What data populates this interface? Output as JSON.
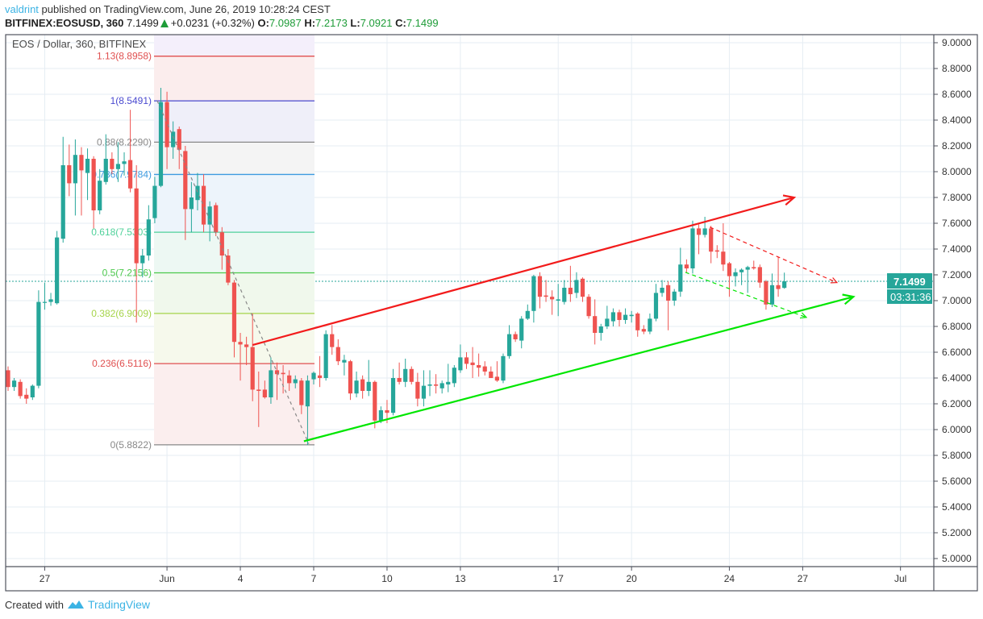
{
  "header": {
    "user": "valdrint",
    "published": "published on TradingView.com, June 26, 2019 10:28:24 CEST",
    "symbol": "BITFINEX:EOSUSD, 360",
    "last": "7.1499",
    "change": "+0.0231 (+0.32%)",
    "o_label": "O:",
    "o": "7.0987",
    "h_label": "H:",
    "h": "7.2173",
    "l_label": "L:",
    "l": "7.0921",
    "c_label": "C:",
    "c": "7.1499"
  },
  "legend": "EOS / Dollar, 360, BITFINEX",
  "price_label": "7.1499",
  "countdown": "03:31:36",
  "footer": {
    "created_with": "Created with",
    "brand": "TradingView"
  },
  "colors": {
    "up": "#26a69a",
    "down": "#ef5350",
    "trend_up": "#00e600",
    "trend_down": "#f21b1b"
  },
  "chart_data": {
    "type": "candlestick",
    "title": "EOS / Dollar, 360, BITFINEX",
    "ylim": [
      4.9,
      9.06
    ],
    "grid": true,
    "price_ticks": [
      "9.0000",
      "8.8000",
      "8.6000",
      "8.4000",
      "8.2000",
      "8.0000",
      "7.8000",
      "7.6000",
      "7.4000",
      "7.2000",
      "7.0000",
      "6.8000",
      "6.6000",
      "6.4000",
      "6.2000",
      "6.0000",
      "5.8000",
      "5.6000",
      "5.4000",
      "5.2000",
      "5.0000"
    ],
    "date_ticks": [
      "27",
      "Jun",
      "4",
      "7",
      "10",
      "13",
      "17",
      "20",
      "24",
      "27",
      "Jul"
    ],
    "fib_levels": [
      {
        "ratio": "1.13",
        "price": "8.8958",
        "color": "#e05050"
      },
      {
        "ratio": "1",
        "price": "8.5491",
        "color": "#4a4ad0"
      },
      {
        "ratio": "0.88",
        "price": "8.2290",
        "color": "#888888"
      },
      {
        "ratio": "0.786",
        "price": "7.9784",
        "color": "#3d9be0"
      },
      {
        "ratio": "0.618",
        "price": "7.5303",
        "color": "#4fd19a"
      },
      {
        "ratio": "0.5",
        "price": "7.2156",
        "color": "#4cc94c"
      },
      {
        "ratio": "0.382",
        "price": "6.9009",
        "color": "#a6d44a"
      },
      {
        "ratio": "0.236",
        "price": "6.5116",
        "color": "#e05050"
      },
      {
        "ratio": "0",
        "price": "5.8822",
        "color": "#888888"
      }
    ],
    "candles_ohlc": [
      [
        6.46,
        6.49,
        6.3,
        6.33
      ],
      [
        6.33,
        6.4,
        6.3,
        6.38
      ],
      [
        6.37,
        6.39,
        6.24,
        6.26
      ],
      [
        6.27,
        6.32,
        6.2,
        6.24
      ],
      [
        6.25,
        6.35,
        6.23,
        6.34
      ],
      [
        6.34,
        7.08,
        6.32,
        6.99
      ],
      [
        6.99,
        7.14,
        6.93,
        6.99
      ],
      [
        6.99,
        7.06,
        6.96,
        7.01
      ],
      [
        6.98,
        7.54,
        6.97,
        7.49
      ],
      [
        7.48,
        8.27,
        7.45,
        8.05
      ],
      [
        8.05,
        8.21,
        7.81,
        7.91
      ],
      [
        7.91,
        8.25,
        7.66,
        8.13
      ],
      [
        8.13,
        8.19,
        7.66,
        8.01
      ],
      [
        7.99,
        8.18,
        7.78,
        8.1
      ],
      [
        8.1,
        8.12,
        7.56,
        7.7
      ],
      [
        7.7,
        8.02,
        7.67,
        7.93
      ],
      [
        7.92,
        8.29,
        7.9,
        8.1
      ],
      [
        8.1,
        8.15,
        7.98,
        8.02
      ],
      [
        8.02,
        8.23,
        7.92,
        8.06
      ],
      [
        8.06,
        8.15,
        7.97,
        8.08
      ],
      [
        8.09,
        8.48,
        7.84,
        7.87
      ],
      [
        7.87,
        8.05,
        6.83,
        7.29
      ],
      [
        7.29,
        7.4,
        7.18,
        7.35
      ],
      [
        7.35,
        7.74,
        7.31,
        7.63
      ],
      [
        7.64,
        7.96,
        7.6,
        7.89
      ],
      [
        7.89,
        8.65,
        7.88,
        8.54
      ],
      [
        8.54,
        8.62,
        8.02,
        8.19
      ],
      [
        8.19,
        8.39,
        8.1,
        8.31
      ],
      [
        8.33,
        8.35,
        8.02,
        8.17
      ],
      [
        8.16,
        8.2,
        7.47,
        7.71
      ],
      [
        7.71,
        7.92,
        7.53,
        7.8
      ],
      [
        7.78,
        7.99,
        7.7,
        7.89
      ],
      [
        7.89,
        7.98,
        7.53,
        7.59
      ],
      [
        7.59,
        7.77,
        7.46,
        7.73
      ],
      [
        7.74,
        7.76,
        7.5,
        7.53
      ],
      [
        7.53,
        7.57,
        7.24,
        7.35
      ],
      [
        7.35,
        7.4,
        7.12,
        7.14
      ],
      [
        7.14,
        7.16,
        6.56,
        6.68
      ],
      [
        6.68,
        6.75,
        6.38,
        6.66
      ],
      [
        6.66,
        6.72,
        6.5,
        6.64
      ],
      [
        6.64,
        6.9,
        6.22,
        6.31
      ],
      [
        6.31,
        6.45,
        6.02,
        6.3
      ],
      [
        6.31,
        6.38,
        6.24,
        6.25
      ],
      [
        6.25,
        6.56,
        6.2,
        6.46
      ],
      [
        6.46,
        6.52,
        6.23,
        6.43
      ],
      [
        6.44,
        6.5,
        6.28,
        6.43
      ],
      [
        6.42,
        6.46,
        6.3,
        6.36
      ],
      [
        6.36,
        6.42,
        6.32,
        6.39
      ],
      [
        6.38,
        6.4,
        6.12,
        6.19
      ],
      [
        6.18,
        6.42,
        5.88,
        6.38
      ],
      [
        6.39,
        6.45,
        6.35,
        6.44
      ],
      [
        6.42,
        6.57,
        6.33,
        6.4
      ],
      [
        6.4,
        6.77,
        6.38,
        6.74
      ],
      [
        6.74,
        6.81,
        6.58,
        6.64
      ],
      [
        6.64,
        6.7,
        6.5,
        6.53
      ],
      [
        6.52,
        6.58,
        6.42,
        6.54
      ],
      [
        6.53,
        6.54,
        6.23,
        6.28
      ],
      [
        6.28,
        6.45,
        6.25,
        6.38
      ],
      [
        6.39,
        6.42,
        6.24,
        6.3
      ],
      [
        6.3,
        6.54,
        6.26,
        6.37
      ],
      [
        6.37,
        6.38,
        6.01,
        6.07
      ],
      [
        6.07,
        6.18,
        6.05,
        6.15
      ],
      [
        6.15,
        6.23,
        6.05,
        6.13
      ],
      [
        6.13,
        6.47,
        6.11,
        6.4
      ],
      [
        6.4,
        6.52,
        6.35,
        6.37
      ],
      [
        6.37,
        6.55,
        6.33,
        6.47
      ],
      [
        6.47,
        6.49,
        6.35,
        6.37
      ],
      [
        6.37,
        6.44,
        6.18,
        6.24
      ],
      [
        6.24,
        6.46,
        6.18,
        6.34
      ],
      [
        6.34,
        6.46,
        6.26,
        6.35
      ],
      [
        6.35,
        6.43,
        6.28,
        6.34
      ],
      [
        6.32,
        6.38,
        6.28,
        6.36
      ],
      [
        6.35,
        6.51,
        6.29,
        6.37
      ],
      [
        6.36,
        6.5,
        6.33,
        6.48
      ],
      [
        6.46,
        6.66,
        6.44,
        6.56
      ],
      [
        6.56,
        6.6,
        6.47,
        6.51
      ],
      [
        6.52,
        6.64,
        6.4,
        6.5
      ],
      [
        6.5,
        6.59,
        6.41,
        6.48
      ],
      [
        6.49,
        6.53,
        6.42,
        6.45
      ],
      [
        6.45,
        6.49,
        6.4,
        6.4
      ],
      [
        6.41,
        6.53,
        6.37,
        6.38
      ],
      [
        6.38,
        6.59,
        6.36,
        6.57
      ],
      [
        6.57,
        6.81,
        6.55,
        6.74
      ],
      [
        6.74,
        6.76,
        6.68,
        6.7
      ],
      [
        6.69,
        6.88,
        6.63,
        6.86
      ],
      [
        6.86,
        6.97,
        6.85,
        6.92
      ],
      [
        6.92,
        7.2,
        6.83,
        7.19
      ],
      [
        7.19,
        7.22,
        6.94,
        7.03
      ],
      [
        7.04,
        7.16,
        6.99,
        7.03
      ],
      [
        7.03,
        7.08,
        6.89,
        7.01
      ],
      [
        7.0,
        7.13,
        6.88,
        7.01
      ],
      [
        6.99,
        7.16,
        6.97,
        7.1
      ],
      [
        7.1,
        7.27,
        6.99,
        7.05
      ],
      [
        7.06,
        7.22,
        7.02,
        7.16
      ],
      [
        7.17,
        7.18,
        6.99,
        7.03
      ],
      [
        7.03,
        7.05,
        6.86,
        6.88
      ],
      [
        6.88,
        7.01,
        6.66,
        6.75
      ],
      [
        6.75,
        6.82,
        6.69,
        6.8
      ],
      [
        6.8,
        6.96,
        6.78,
        6.86
      ],
      [
        6.84,
        6.94,
        6.8,
        6.91
      ],
      [
        6.91,
        6.93,
        6.8,
        6.85
      ],
      [
        6.85,
        6.94,
        6.82,
        6.89
      ],
      [
        6.88,
        6.92,
        6.83,
        6.89
      ],
      [
        6.9,
        6.91,
        6.72,
        6.77
      ],
      [
        6.78,
        6.81,
        6.74,
        6.76
      ],
      [
        6.76,
        6.9,
        6.74,
        6.86
      ],
      [
        6.86,
        7.13,
        6.84,
        7.06
      ],
      [
        7.06,
        7.16,
        7.03,
        7.1
      ],
      [
        7.12,
        7.15,
        6.77,
        7.0
      ],
      [
        7.0,
        7.09,
        6.96,
        7.07
      ],
      [
        7.07,
        7.41,
        7.03,
        7.28
      ],
      [
        7.28,
        7.32,
        7.22,
        7.25
      ],
      [
        7.25,
        7.62,
        7.21,
        7.56
      ],
      [
        7.56,
        7.59,
        7.36,
        7.51
      ],
      [
        7.51,
        7.65,
        7.49,
        7.56
      ],
      [
        7.56,
        7.58,
        7.29,
        7.38
      ],
      [
        7.39,
        7.43,
        7.33,
        7.38
      ],
      [
        7.38,
        7.6,
        7.23,
        7.28
      ],
      [
        7.29,
        7.3,
        7.03,
        7.19
      ],
      [
        7.19,
        7.25,
        7.11,
        7.22
      ],
      [
        7.22,
        7.25,
        7.12,
        7.24
      ],
      [
        7.24,
        7.27,
        7.06,
        7.26
      ],
      [
        7.26,
        7.31,
        7.24,
        7.25
      ],
      [
        7.26,
        7.28,
        7.1,
        7.14
      ],
      [
        7.15,
        7.16,
        6.93,
        6.97
      ],
      [
        6.97,
        7.21,
        6.95,
        7.12
      ],
      [
        7.12,
        7.34,
        7.03,
        7.09
      ],
      [
        7.0987,
        7.2173,
        7.0921,
        7.1499
      ]
    ],
    "last_price": 7.1499
  }
}
